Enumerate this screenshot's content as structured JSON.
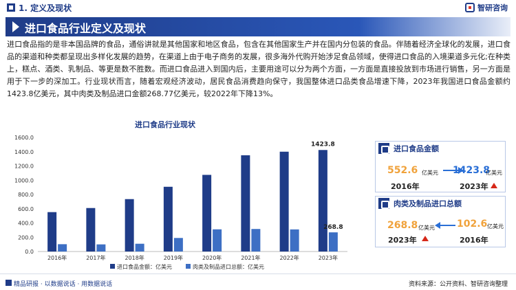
{
  "header": {
    "section_title": "1. 定义及现状",
    "brand": "智研咨询",
    "banner_title": "进口食品行业定义及现状"
  },
  "paragraph": "进口食品指的是非本国品牌的食品，通俗讲就是其他国家和地区食品，包含在其他国家生产并在国内分包装的食品。伴随着经济全球化的发展，进口食品的渠道和种类都呈现出多样化发展的趋势，在渠道上由于电子商务的发展，很多海外代购开始涉足食品领域，使得进口食品的入境渠道多元化;在种类上，糕点、酒类、乳制品、等更是数不胜数。而进口食品进入到国内后，主要用途可以分为两个方面，一方面是直接投放到市场进行销售，另一方面是用于下一步的深加工。行业现状而言，随着宏观经济波动，居民食品消费趋向保守，我国整体进口品类食品增速下降，2023年我国进口食品金额约1423.8亿美元，其中肉类及制品进口金额268.77亿美元，较2022年下降13%。",
  "chart_data": {
    "type": "bar",
    "title": "进口食品行业现状",
    "categories": [
      "2016年",
      "2017年",
      "2018年",
      "2019年",
      "2020年",
      "2021年",
      "2022年",
      "2023年"
    ],
    "series": [
      {
        "name": "进口食品金额：亿美元",
        "color": "#1f3c88",
        "values": [
          552.6,
          610,
          735,
          908,
          1075,
          1350,
          1400,
          1423.8
        ]
      },
      {
        "name": "肉类及制品进口总额：亿美元",
        "color": "#3d6fc4",
        "values": [
          102.6,
          100,
          109,
          190,
          311,
          316,
          310,
          268.8
        ]
      }
    ],
    "ylim": [
      0,
      1600
    ],
    "yticks": [
      "0.0",
      "200.0",
      "400.0",
      "600.0",
      "800.0",
      "1000.0",
      "1200.0",
      "1400.0",
      "1600.0"
    ],
    "data_labels": {
      "series0_last": "1423.8",
      "series1_last": "268.8"
    },
    "legend": "bottom"
  },
  "cards": [
    {
      "label": "进口食品金额",
      "left_value": "552.6",
      "left_unit": "亿美元",
      "left_year": "2016年",
      "right_value": "1423.8",
      "right_unit": "亿美元",
      "right_year": "2023年"
    },
    {
      "label": "肉类及制品进口总额",
      "left_value": "268.8",
      "left_unit": "亿美元",
      "left_year": "2023年",
      "right_value": "102.6",
      "right_unit": "亿美元",
      "right_year": "2016年"
    }
  ],
  "colors": {
    "primary": "#1f3c88",
    "orange": "#f0a23b",
    "blue": "#2a6fd6",
    "red": "#d62718"
  },
  "footer": {
    "brand": "精品研报 · 以数据说话 · 用数据说话",
    "source": "资料来源：公开资料、智研咨询整理"
  }
}
